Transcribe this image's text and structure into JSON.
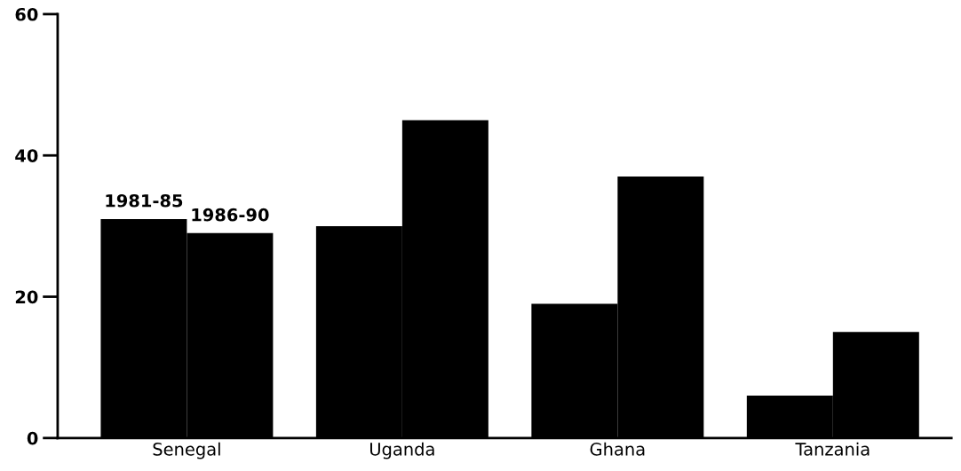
{
  "chart_data": {
    "type": "bar",
    "categories": [
      "Senegal",
      "Uganda",
      "Ghana",
      "Tanzania"
    ],
    "series": [
      {
        "name": "1981-85",
        "color": "#000000",
        "values": [
          31,
          30,
          19,
          6
        ]
      },
      {
        "name": "1986-90",
        "color": "#000000",
        "values": [
          29,
          45,
          37,
          15
        ]
      }
    ],
    "ylim": [
      0,
      60
    ],
    "yticks": [
      0,
      20,
      40,
      60
    ],
    "grid": false,
    "legend": false
  }
}
